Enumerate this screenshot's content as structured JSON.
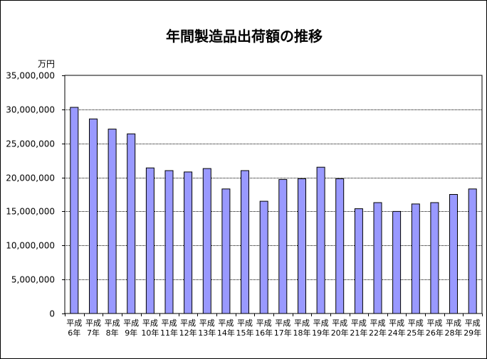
{
  "chart_data": {
    "type": "bar",
    "title": "年間製造品出荷額の推移",
    "ylabel": "万円",
    "xlabel": "",
    "ylim": [
      0,
      35000000
    ],
    "y_ticks": [
      0,
      5000000,
      10000000,
      15000000,
      20000000,
      25000000,
      30000000,
      35000000
    ],
    "y_tick_labels": [
      "0",
      "5,000,000",
      "10,000,000",
      "15,000,000",
      "20,000,000",
      "25,000,000",
      "30,000,000",
      "35,000,000"
    ],
    "grid": true,
    "legend": "none",
    "bar_color": "#9999ff",
    "categories": [
      {
        "line1": "平成",
        "line2": "6年"
      },
      {
        "line1": "平成",
        "line2": "7年"
      },
      {
        "line1": "平成",
        "line2": "8年"
      },
      {
        "line1": "平成",
        "line2": "9年"
      },
      {
        "line1": "平成",
        "line2": "10年"
      },
      {
        "line1": "平成",
        "line2": "11年"
      },
      {
        "line1": "平成",
        "line2": "12年"
      },
      {
        "line1": "平成",
        "line2": "13年"
      },
      {
        "line1": "平成",
        "line2": "14年"
      },
      {
        "line1": "平成",
        "line2": "15年"
      },
      {
        "line1": "平成",
        "line2": "16年"
      },
      {
        "line1": "平成",
        "line2": "17年"
      },
      {
        "line1": "平成",
        "line2": "18年"
      },
      {
        "line1": "平成",
        "line2": "19年"
      },
      {
        "line1": "平成",
        "line2": "20年"
      },
      {
        "line1": "平成",
        "line2": "21年"
      },
      {
        "line1": "平成",
        "line2": "22年"
      },
      {
        "line1": "平成",
        "line2": "24年"
      },
      {
        "line1": "平成",
        "line2": "25年"
      },
      {
        "line1": "平成",
        "line2": "26年"
      },
      {
        "line1": "平成",
        "line2": "28年"
      },
      {
        "line1": "平成",
        "line2": "29年"
      }
    ],
    "values": [
      30300000,
      28600000,
      27100000,
      26400000,
      21400000,
      21000000,
      20800000,
      21300000,
      18300000,
      21000000,
      16500000,
      19700000,
      19800000,
      21500000,
      19800000,
      15400000,
      16300000,
      15000000,
      16100000,
      16300000,
      17500000,
      18300000
    ]
  }
}
